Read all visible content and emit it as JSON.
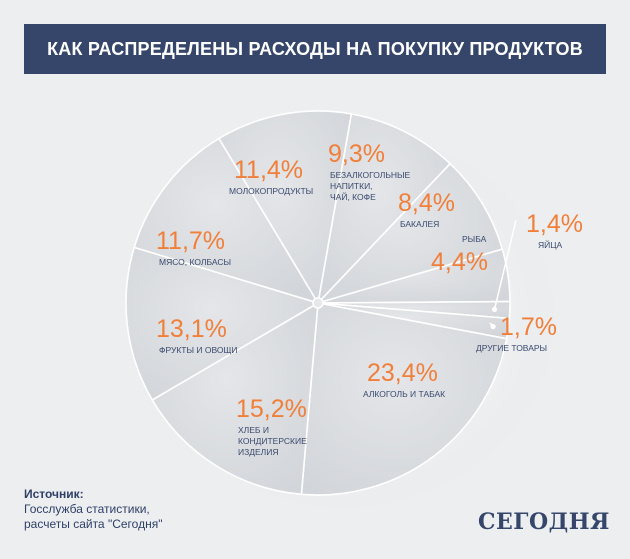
{
  "title": "КАК РАСПРЕДЕЛЕНЫ РАСХОДЫ  НА ПОКУПКУ ПРОДУКТОВ",
  "source": {
    "heading": "Источник:",
    "line1": "Госслужба статистики,",
    "line2": "расчеты  сайта \"Сегодня\""
  },
  "logo": "СЕГОДНЯ",
  "colors": {
    "banner": "#35466a",
    "percent": "#f07f3a",
    "label": "#3a4a6e",
    "slice": "#d9dce0",
    "background": "#eceef0"
  },
  "chart_data": {
    "type": "pie",
    "title": "КАК РАСПРЕДЕЛЕНЫ РАСХОДЫ  НА ПОКУПКУ ПРОДУКТОВ",
    "unit": "%",
    "slices": [
      {
        "label": "Безалкогольные напитки, чай, кофе",
        "display": "9,3%",
        "value": 9.3
      },
      {
        "label": "Бакалея",
        "display": "8,4%",
        "value": 8.4
      },
      {
        "label": "Рыба",
        "display": "4,4%",
        "value": 4.4
      },
      {
        "label": "Яйца",
        "display": "1,4%",
        "value": 1.4
      },
      {
        "label": "Другие товары",
        "display": "1,7%",
        "value": 1.7
      },
      {
        "label": "Алкоголь и табак",
        "display": "23,4%",
        "value": 23.4
      },
      {
        "label": "Хлеб и кондитерские изделия",
        "display": "15,2%",
        "value": 15.2
      },
      {
        "label": "Фрукты и овощи",
        "display": "13,1%",
        "value": 13.1
      },
      {
        "label": "Мясо, колбасы",
        "display": "11,7%",
        "value": 11.7
      },
      {
        "label": "Молокопродукты",
        "display": "11,4%",
        "value": 11.4
      }
    ]
  }
}
